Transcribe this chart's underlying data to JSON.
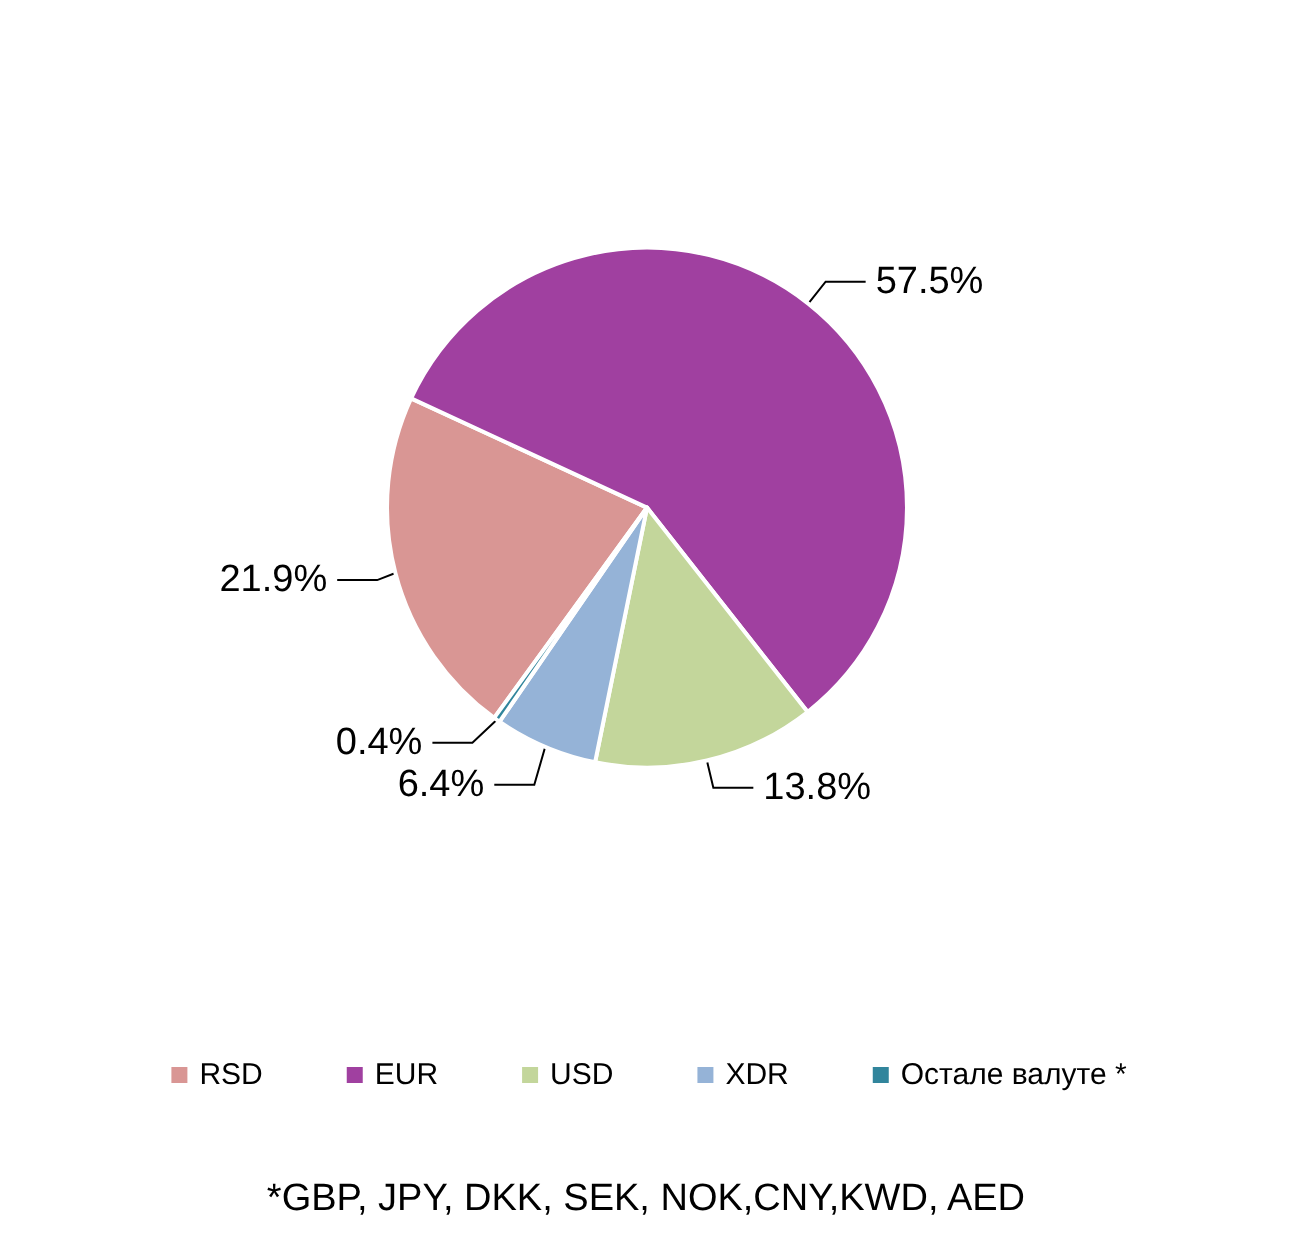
{
  "chart_data": {
    "type": "pie",
    "categories": [
      "RSD",
      "EUR",
      "USD",
      "XDR",
      "Остале валуте *"
    ],
    "values": [
      21.9,
      57.5,
      13.8,
      6.4,
      0.4
    ],
    "value_labels": [
      "21.9%",
      "57.5%",
      "13.8%",
      "6.4%",
      "0.4%"
    ],
    "colors": [
      "#d99694",
      "#a040a0",
      "#c3d69b",
      "#95b3d7",
      "#31859c"
    ],
    "legend": "bottom",
    "annotations": [
      "*GBP, JPY, DKK, SEK, NOK,CNY,KWD, AED"
    ]
  }
}
